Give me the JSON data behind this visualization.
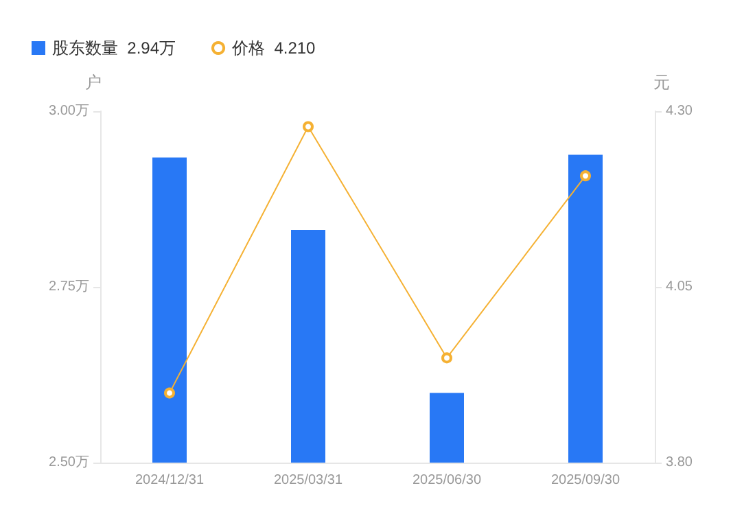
{
  "chart_data": {
    "type": "bar",
    "categories": [
      "2024/12/31",
      "2025/03/31",
      "2025/06/30",
      "2025/09/30"
    ],
    "series": [
      {
        "name": "股东数量  2.94万",
        "color": "#2878f5",
        "values": [
          2.934,
          2.831,
          2.599,
          2.938
        ]
      },
      {
        "name": "价格  4.210",
        "type": "line",
        "axis": "y2",
        "color": "#f5b133",
        "values": [
          3.899,
          4.278,
          3.949,
          4.208
        ]
      }
    ],
    "ylabel": "户",
    "y2label": "元",
    "ylim": [
      2.5,
      3.0
    ],
    "yticks": [
      {
        "value": 2.5,
        "label": "2.50万"
      },
      {
        "value": 2.75,
        "label": "2.75万"
      },
      {
        "value": 3.0,
        "label": "3.00万"
      }
    ],
    "y2lim": [
      3.8,
      4.3
    ],
    "y2ticks": [
      {
        "value": 3.8,
        "label": "3.80"
      },
      {
        "value": 4.05,
        "label": "4.05"
      },
      {
        "value": 4.3,
        "label": "4.30"
      }
    ],
    "grid": false,
    "legend": "top left",
    "marker": "circle"
  }
}
